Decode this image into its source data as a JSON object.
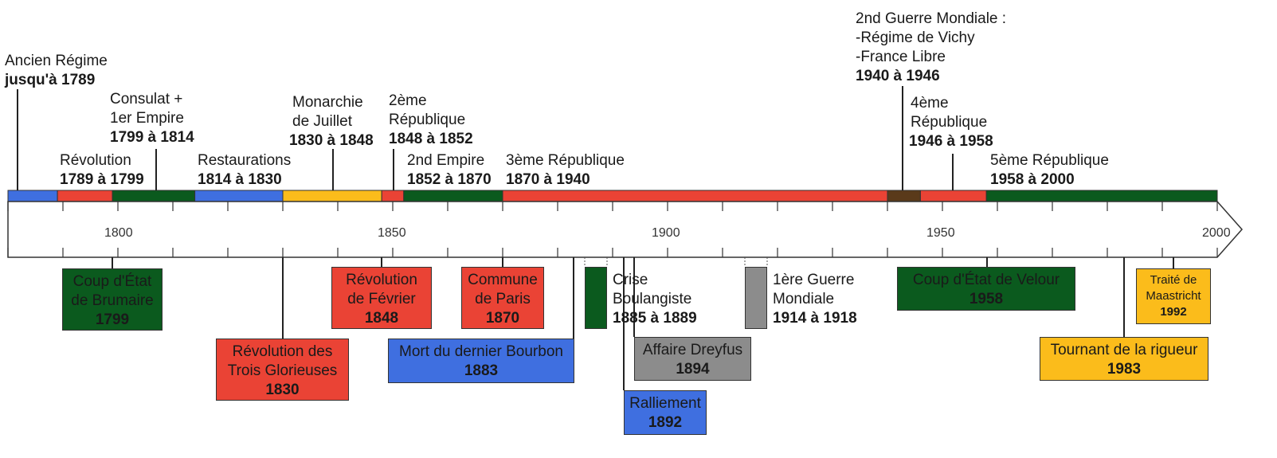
{
  "colors": {
    "blue": "#3f6fe0",
    "red": "#ea4335",
    "green": "#0b5a1e",
    "yellow": "#fbbc1b",
    "gray": "#8c8c8c",
    "brown": "#5a3a1a"
  },
  "axis": {
    "start_year": 1780,
    "end_year": 2000,
    "labels": [
      "1800",
      "1850",
      "1900",
      "1950",
      "2000"
    ]
  },
  "periods": [
    {
      "start": 1780,
      "end": 1789,
      "color": "blue"
    },
    {
      "start": 1789,
      "end": 1799,
      "color": "red"
    },
    {
      "start": 1799,
      "end": 1814,
      "color": "green"
    },
    {
      "start": 1814,
      "end": 1830,
      "color": "blue"
    },
    {
      "start": 1830,
      "end": 1848,
      "color": "yellow"
    },
    {
      "start": 1848,
      "end": 1852,
      "color": "red"
    },
    {
      "start": 1852,
      "end": 1870,
      "color": "green"
    },
    {
      "start": 1870,
      "end": 1940,
      "color": "red"
    },
    {
      "start": 1940,
      "end": 1946,
      "color": "brown"
    },
    {
      "start": 1946,
      "end": 1958,
      "color": "red"
    },
    {
      "start": 1958,
      "end": 2000,
      "color": "green"
    }
  ],
  "period_labels": {
    "ancien": {
      "name": "Ancien Régime",
      "dates": "jusqu'à 1789"
    },
    "revolution": {
      "name": "Révolution",
      "dates": "1789 à 1799"
    },
    "consulat": {
      "name1": "Consulat +",
      "name2": "1er Empire",
      "dates": "1799 à 1814"
    },
    "restaurations": {
      "name": "Restaurations",
      "dates": "1814 à 1830"
    },
    "juillet": {
      "name1": "Monarchie",
      "name2": "de Juillet",
      "dates": "1830 à 1848"
    },
    "rep2": {
      "name1": "2ème",
      "name2": "République",
      "dates": "1848 à 1852"
    },
    "empire2": {
      "name": "2nd Empire",
      "dates": "1852 à 1870"
    },
    "rep3": {
      "name": "3ème République",
      "dates": "1870 à 1940"
    },
    "guerre2": {
      "name1": "2nd Guerre Mondiale :",
      "name2": "-Régime de Vichy",
      "name3": "-France Libre",
      "dates": "1940 à 1946"
    },
    "rep4": {
      "name1": "4ème",
      "name2": "République",
      "dates": "1946 à 1958"
    },
    "rep5": {
      "name": "5ème République",
      "dates": "1958 à 2000"
    }
  },
  "events": {
    "brumaire": {
      "name1": "Coup d'État",
      "name2": "de Brumaire",
      "year": "1799",
      "color": "green"
    },
    "glorieuses": {
      "name1": "Révolution des",
      "name2": "Trois Glorieuses",
      "year": "1830",
      "color": "red"
    },
    "fevrier": {
      "name1": "Révolution",
      "name2": "de Février",
      "year": "1848",
      "color": "red"
    },
    "commune": {
      "name1": "Commune",
      "name2": "de Paris",
      "year": "1870",
      "color": "red"
    },
    "bourbon": {
      "name": "Mort du dernier Bourbon",
      "year": "1883",
      "color": "blue"
    },
    "boulanger": {
      "name1": "Crise",
      "name2": "Boulangiste",
      "dates": "1885 à 1889",
      "color": "green"
    },
    "dreyfus": {
      "name": "Affaire Dreyfus",
      "year": "1894",
      "color": "gray"
    },
    "ralliement": {
      "name": "Ralliement",
      "year": "1892",
      "color": "blue"
    },
    "guerre1": {
      "name1": "1ère Guerre",
      "name2": "Mondiale",
      "dates": "1914 à 1918",
      "color": "gray"
    },
    "velour": {
      "name": "Coup d'État de Velour",
      "year": "1958",
      "color": "green"
    },
    "rigueur": {
      "name": "Tournant de la rigueur",
      "year": "1983",
      "color": "yellow"
    },
    "maastricht": {
      "name1": "Traité de",
      "name2": "Maastricht",
      "year": "1992",
      "color": "yellow"
    }
  }
}
